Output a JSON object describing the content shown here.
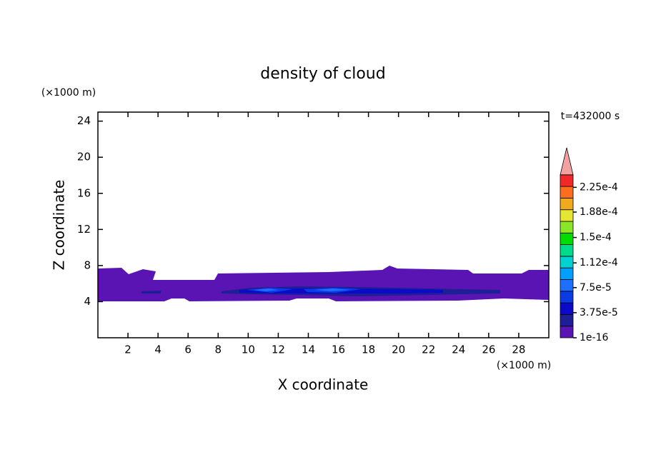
{
  "chart_data": {
    "type": "contour",
    "title": "density of cloud",
    "time_label": "t=432000 s",
    "x_label": "X coordinate",
    "y_label": "Z coordinate",
    "x_unit": "(×1000 m)",
    "y_unit": "(×1000 m)",
    "xlim": [
      0,
      30
    ],
    "xticks": [
      2,
      4,
      6,
      8,
      10,
      12,
      14,
      16,
      18,
      20,
      22,
      24,
      26,
      28
    ],
    "ylim": [
      0,
      25
    ],
    "yticks": [
      4,
      8,
      12,
      16,
      20,
      24
    ],
    "colorbar": {
      "lim": [
        1e-16,
        0.00024375
      ],
      "colors": [
        "#5a14b4",
        "#1e1e96",
        "#0a0ac8",
        "#0a3ce6",
        "#1e6eff",
        "#00a0ff",
        "#00d2d2",
        "#00dc8c",
        "#00dc00",
        "#8ce628",
        "#e6e632",
        "#f0aa1e",
        "#fa6e1e",
        "#f02828"
      ],
      "extend_color": "#f5a0a0",
      "ticks": [
        {
          "value": 1e-16,
          "label": "1e-16"
        },
        {
          "value": 3.75e-05,
          "label": "3.75e-5"
        },
        {
          "value": 7.5e-05,
          "label": "7.5e-5"
        },
        {
          "value": 0.000112,
          "label": "1.12e-4"
        },
        {
          "value": 0.00015,
          "label": "1.5e-4"
        },
        {
          "value": 0.000188,
          "label": "1.88e-4"
        },
        {
          "value": 0.000225,
          "label": "2.25e-4"
        }
      ]
    }
  }
}
